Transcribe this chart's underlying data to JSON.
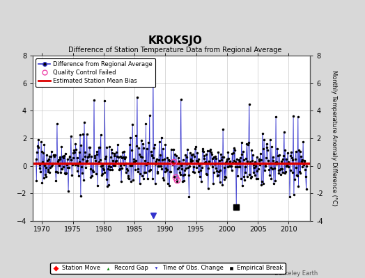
{
  "title": "KROKSJO",
  "subtitle": "Difference of Station Temperature Data from Regional Average",
  "ylabel": "Monthly Temperature Anomaly Difference (°C)",
  "xlim": [
    1968.5,
    2013.5
  ],
  "ylim": [
    -4,
    8
  ],
  "yticks": [
    -4,
    -2,
    0,
    2,
    4,
    6,
    8
  ],
  "xticks": [
    1970,
    1975,
    1980,
    1985,
    1990,
    1995,
    2000,
    2005,
    2010
  ],
  "bias_line_y": 0.2,
  "bias_color": "#dd0000",
  "line_color": "#3333cc",
  "line_color_light": "#8888ee",
  "dot_color": "#000000",
  "background_color": "#d8d8d8",
  "plot_bg_color": "#ffffff",
  "grid_color": "#bbbbbb",
  "time_of_obs_year": 1988.0,
  "empirical_break_year": 2001.5,
  "empirical_break_y": -3.0,
  "qc_failed_years": [
    1991.3,
    1991.6,
    1991.9
  ],
  "qc_failed_vals": [
    0.3,
    -0.8,
    -1.0
  ],
  "big_spike_year": 1988.08,
  "big_spike_val": 7.0,
  "isolated_dot_year": 1992.5,
  "isolated_dot_val": 4.8,
  "seed": 17,
  "start_year": 1969.0,
  "end_year": 2013.0,
  "berkeley_earth_text": "Berkeley Earth"
}
